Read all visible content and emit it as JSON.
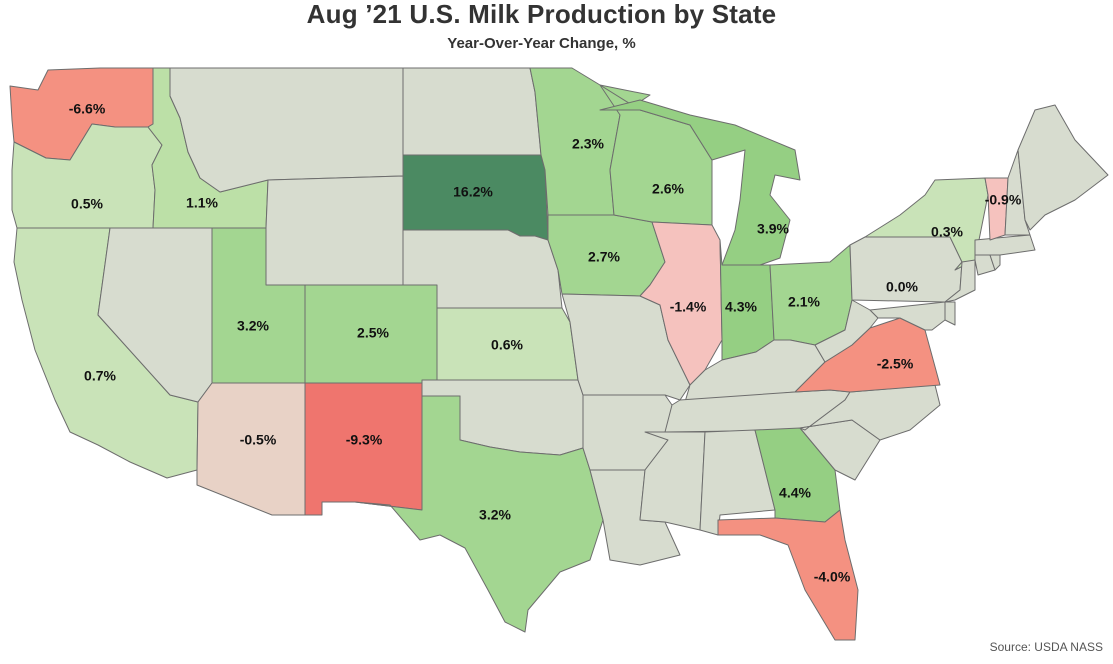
{
  "title": "Aug ’21 U.S. Milk Production by State",
  "subtitle": "Year-Over-Year Change, %",
  "source": "Source: USDA NASS",
  "colors": {
    "no_data": "#d7dccf",
    "green_light": "#c9e3b8",
    "green_mid": "#bce0a7",
    "green": "#a3d691",
    "green_strong": "#95cf83",
    "green_dark": "#4b8a62",
    "red_light": "#f5c2be",
    "red_pale": "#e8d2c6",
    "red": "#f49181",
    "red_strong": "#ef756e",
    "border": "#6d6d6d"
  },
  "chart_data": {
    "type": "choropleth",
    "values": [
      {
        "state": "WA",
        "value": -6.6,
        "label": "-6.6%"
      },
      {
        "state": "OR",
        "value": 0.5,
        "label": "0.5%"
      },
      {
        "state": "CA",
        "value": 0.7,
        "label": "0.7%"
      },
      {
        "state": "ID",
        "value": 1.1,
        "label": "1.1%"
      },
      {
        "state": "UT",
        "value": 3.2,
        "label": "3.2%"
      },
      {
        "state": "AZ",
        "value": -0.5,
        "label": "-0.5%"
      },
      {
        "state": "CO",
        "value": 2.5,
        "label": "2.5%"
      },
      {
        "state": "NM",
        "value": -9.3,
        "label": "-9.3%"
      },
      {
        "state": "SD",
        "value": 16.2,
        "label": "16.2%"
      },
      {
        "state": "KS",
        "value": 0.6,
        "label": "0.6%"
      },
      {
        "state": "TX",
        "value": 3.2,
        "label": "3.2%"
      },
      {
        "state": "MN",
        "value": 2.3,
        "label": "2.3%"
      },
      {
        "state": "IA",
        "value": 2.7,
        "label": "2.7%"
      },
      {
        "state": "WI",
        "value": 2.6,
        "label": "2.6%"
      },
      {
        "state": "IL",
        "value": -1.4,
        "label": "-1.4%"
      },
      {
        "state": "MI",
        "value": 3.9,
        "label": "3.9%"
      },
      {
        "state": "IN",
        "value": 4.3,
        "label": "4.3%"
      },
      {
        "state": "OH",
        "value": 2.1,
        "label": "2.1%"
      },
      {
        "state": "GA",
        "value": 4.4,
        "label": "4.4%"
      },
      {
        "state": "FL",
        "value": -4.0,
        "label": "-4.0%"
      },
      {
        "state": "PA",
        "value": 0.0,
        "label": "0.0%"
      },
      {
        "state": "NY",
        "value": 0.3,
        "label": "0.3%"
      },
      {
        "state": "VT",
        "value": -0.9,
        "label": "-0.9%"
      },
      {
        "state": "VA",
        "value": -2.5,
        "label": "-2.5%"
      }
    ],
    "no_data_states": [
      "MT",
      "WY",
      "NV",
      "ND",
      "NE",
      "OK",
      "MO",
      "AR",
      "LA",
      "MS",
      "AL",
      "TN",
      "KY",
      "WV",
      "NC",
      "SC",
      "MD",
      "DE",
      "NJ",
      "CT",
      "RI",
      "MA",
      "NH",
      "ME"
    ]
  }
}
